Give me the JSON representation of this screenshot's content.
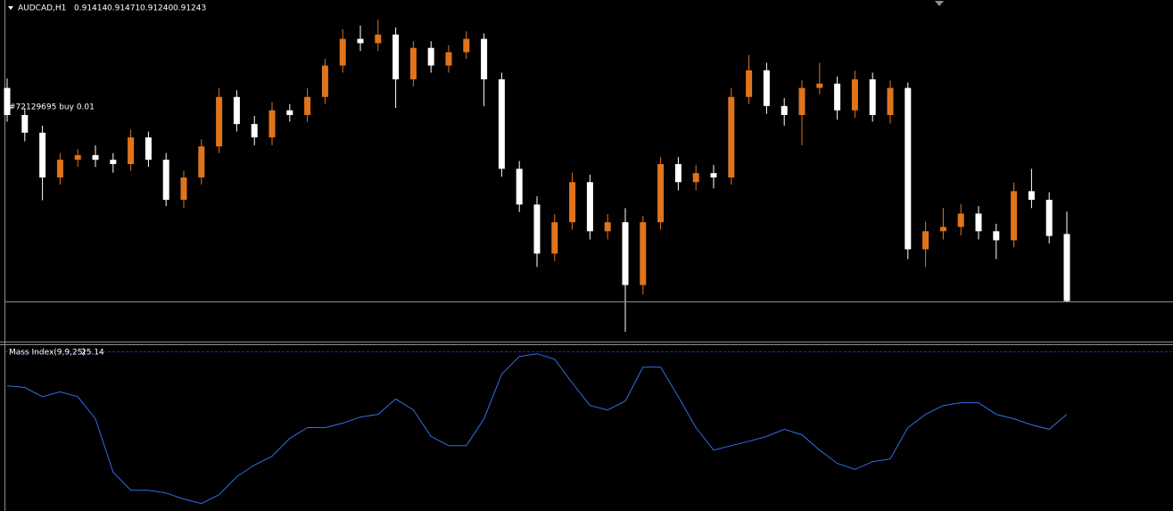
{
  "chart_data": [
    {
      "type": "candlestick",
      "symbol": "AUDCAD,H1",
      "header_labels": [
        "0.91414",
        "0.91471",
        "0.91240",
        "0.91243"
      ],
      "annotation": "#72129695 buy 0.01",
      "up_color": "#e0741c",
      "down_color": "#ffffff",
      "bid_line_color": "#7f8ea0",
      "ylim": [
        0.9114,
        0.9201
      ],
      "open": [
        0.91786,
        0.91717,
        0.91672,
        0.91558,
        0.91603,
        0.91615,
        0.91603,
        0.91592,
        0.9166,
        0.91603,
        0.91501,
        0.91558,
        0.91637,
        0.91763,
        0.91694,
        0.9166,
        0.91729,
        0.91717,
        0.91763,
        0.91843,
        0.91911,
        0.919,
        0.91922,
        0.91808,
        0.91888,
        0.91843,
        0.91877,
        0.91911,
        0.91808,
        0.9158,
        0.91489,
        0.91364,
        0.91444,
        0.91546,
        0.91421,
        0.91444,
        0.91284,
        0.91444,
        0.91592,
        0.91546,
        0.91569,
        0.91558,
        0.91763,
        0.91831,
        0.9174,
        0.91717,
        0.91786,
        0.91797,
        0.91729,
        0.91808,
        0.91717,
        0.91786,
        0.91375,
        0.91421,
        0.91432,
        0.91466,
        0.91421,
        0.91398,
        0.91523,
        0.91501,
        0.91414
      ],
      "high": [
        0.9181,
        0.91735,
        0.9169,
        0.9162,
        0.9163,
        0.9164,
        0.9162,
        0.9168,
        0.91675,
        0.9162,
        0.91575,
        0.91655,
        0.91785,
        0.9178,
        0.91715,
        0.9175,
        0.91745,
        0.91785,
        0.9186,
        0.91935,
        0.91945,
        0.9196,
        0.9194,
        0.91905,
        0.91905,
        0.91895,
        0.9193,
        0.91925,
        0.91825,
        0.916,
        0.9151,
        0.91465,
        0.9157,
        0.91565,
        0.91465,
        0.9148,
        0.9146,
        0.9161,
        0.9161,
        0.9159,
        0.9159,
        0.91785,
        0.9187,
        0.9185,
        0.9176,
        0.91805,
        0.9185,
        0.91815,
        0.9183,
        0.91825,
        0.91805,
        0.918,
        0.91445,
        0.9148,
        0.9149,
        0.91485,
        0.9144,
        0.91545,
        0.9158,
        0.9152,
        0.91471
      ],
      "low": [
        0.917,
        0.9165,
        0.915,
        0.9154,
        0.91585,
        0.91585,
        0.9157,
        0.91575,
        0.91585,
        0.91485,
        0.9148,
        0.9154,
        0.9162,
        0.91675,
        0.9164,
        0.9164,
        0.917,
        0.917,
        0.91745,
        0.91825,
        0.9188,
        0.9188,
        0.91735,
        0.9179,
        0.91825,
        0.91825,
        0.9186,
        0.9174,
        0.9156,
        0.9147,
        0.9133,
        0.91345,
        0.91425,
        0.914,
        0.914,
        0.91165,
        0.9126,
        0.91425,
        0.91525,
        0.91525,
        0.9153,
        0.9154,
        0.91745,
        0.9172,
        0.9169,
        0.9164,
        0.9177,
        0.91705,
        0.9171,
        0.917,
        0.91695,
        0.9135,
        0.9133,
        0.914,
        0.9141,
        0.914,
        0.9135,
        0.9138,
        0.9148,
        0.9139,
        0.9124
      ],
      "close": [
        0.91717,
        0.91672,
        0.91558,
        0.91603,
        0.91615,
        0.91603,
        0.91592,
        0.9166,
        0.91603,
        0.91501,
        0.91558,
        0.91637,
        0.91763,
        0.91694,
        0.9166,
        0.91729,
        0.91717,
        0.91763,
        0.91843,
        0.91911,
        0.919,
        0.91922,
        0.91808,
        0.91888,
        0.91843,
        0.91877,
        0.91911,
        0.91808,
        0.9158,
        0.91489,
        0.91364,
        0.91444,
        0.91546,
        0.91421,
        0.91444,
        0.91284,
        0.91444,
        0.91592,
        0.91546,
        0.91569,
        0.91558,
        0.91763,
        0.91831,
        0.9174,
        0.91717,
        0.91786,
        0.91797,
        0.91729,
        0.91808,
        0.91717,
        0.91786,
        0.91375,
        0.91421,
        0.91432,
        0.91466,
        0.91421,
        0.91398,
        0.91523,
        0.91501,
        0.91409,
        0.91243
      ]
    },
    {
      "type": "line",
      "title": "Mass Index(9,9,25)",
      "color": "#2f6fe8",
      "ylim": [
        22.3,
        27.2
      ],
      "levels": [
        27
      ],
      "level_color": "#2525b0",
      "values": [
        25.98,
        25.93,
        25.66,
        25.8,
        25.66,
        25.01,
        23.44,
        22.91,
        22.91,
        22.83,
        22.65,
        22.52,
        22.78,
        23.31,
        23.65,
        23.91,
        24.43,
        24.75,
        24.75,
        24.88,
        25.06,
        25.14,
        25.59,
        25.27,
        24.49,
        24.22,
        24.22,
        25.01,
        26.32,
        26.84,
        26.92,
        26.76,
        26.06,
        25.4,
        25.27,
        25.53,
        26.53,
        26.53,
        25.66,
        24.75,
        24.09,
        24.22,
        24.35,
        24.49,
        24.7,
        24.54,
        24.09,
        23.7,
        23.52,
        23.75,
        23.83,
        24.75,
        25.14,
        25.4,
        25.48,
        25.48,
        25.14,
        25.01,
        24.83,
        24.7,
        25.14
      ]
    }
  ]
}
